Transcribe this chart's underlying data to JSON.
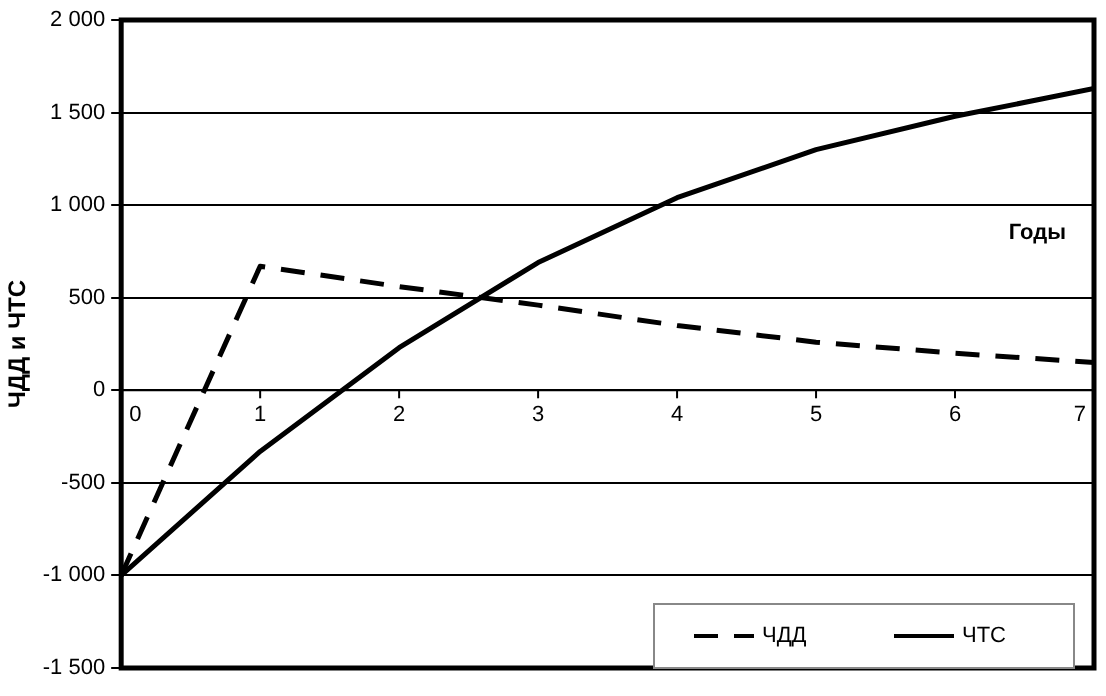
{
  "chart_data": {
    "type": "line",
    "ylabel": "ЧДД и ЧТС",
    "xlabel": "Годы",
    "x": [
      0,
      1,
      2,
      3,
      4,
      5,
      6,
      7
    ],
    "series": [
      {
        "name": "ЧДД",
        "color": "#000000",
        "line_style": "dashed",
        "values": [
          -1000,
          670,
          560,
          460,
          350,
          260,
          200,
          150
        ]
      },
      {
        "name": "ЧТС",
        "color": "#000000",
        "line_style": "solid",
        "values": [
          -1000,
          -330,
          230,
          690,
          1040,
          1300,
          1480,
          1630
        ]
      }
    ],
    "xlim": [
      0,
      7
    ],
    "xticks": [
      0,
      1,
      2,
      3,
      4,
      5,
      6,
      7
    ],
    "ylim": [
      -1500,
      2000
    ],
    "yticks": [
      {
        "value": -1500,
        "label": "-1 500"
      },
      {
        "value": -1000,
        "label": "-1 000"
      },
      -500,
      0,
      500,
      {
        "value": 1000,
        "label": "1 000"
      },
      {
        "value": 1500,
        "label": "1 500"
      },
      {
        "value": 2000,
        "label": "2 000"
      }
    ],
    "grid": "y",
    "legend": "bottom right",
    "marker": "none"
  }
}
